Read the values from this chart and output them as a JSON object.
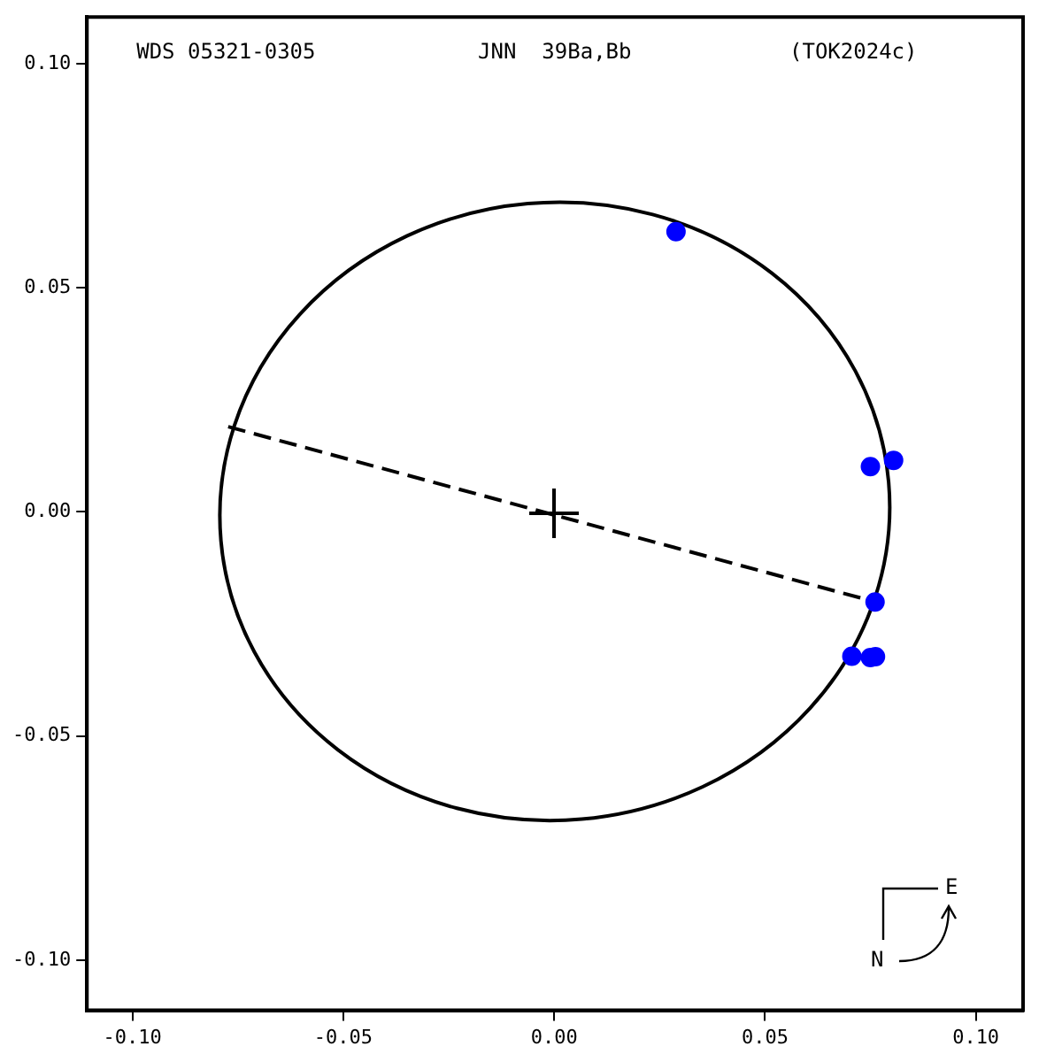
{
  "chart_data": {
    "type": "scatter",
    "title": "WDS 05321-0305",
    "subtitle": "JNN  39Ba,Bb",
    "annotations": [
      "(TOK2024c)",
      "E",
      "N"
    ],
    "xlim": [
      -0.1108,
      0.1112
    ],
    "ylim": [
      -0.1112,
      0.1104
    ],
    "xticks": [
      {
        "value": -0.1,
        "label": "-0.10"
      },
      {
        "value": -0.05,
        "label": "-0.05"
      },
      {
        "value": 0,
        "label": "0.00"
      },
      {
        "value": 0.05,
        "label": "0.05"
      },
      {
        "value": 0.1,
        "label": "0.10"
      }
    ],
    "yticks": [
      {
        "value": -0.1,
        "label": "-0.10"
      },
      {
        "value": -0.05,
        "label": "-0.05"
      },
      {
        "value": 0,
        "label": "0.00"
      },
      {
        "value": 0.05,
        "label": "0.05"
      },
      {
        "value": 0.1,
        "label": "0.10"
      }
    ],
    "grid": false,
    "legend": false,
    "series": [
      {
        "type": "line",
        "color": "#000000",
        "marker": "none",
        "line_style": "dashed",
        "x": [
          -0.0773,
          0.0762
        ],
        "values": [
          0.019,
          -0.0201
        ]
      },
      {
        "type": "scatter",
        "color": "#0000ff",
        "marker": "circle",
        "x": [
          0.0289,
          0.075,
          0.0805,
          0.0761,
          0.0706,
          0.075,
          0.0762
        ],
        "values": [
          0.0625,
          0.0101,
          0.0115,
          -0.0201,
          -0.0322,
          -0.0325,
          -0.0323
        ]
      }
    ]
  }
}
